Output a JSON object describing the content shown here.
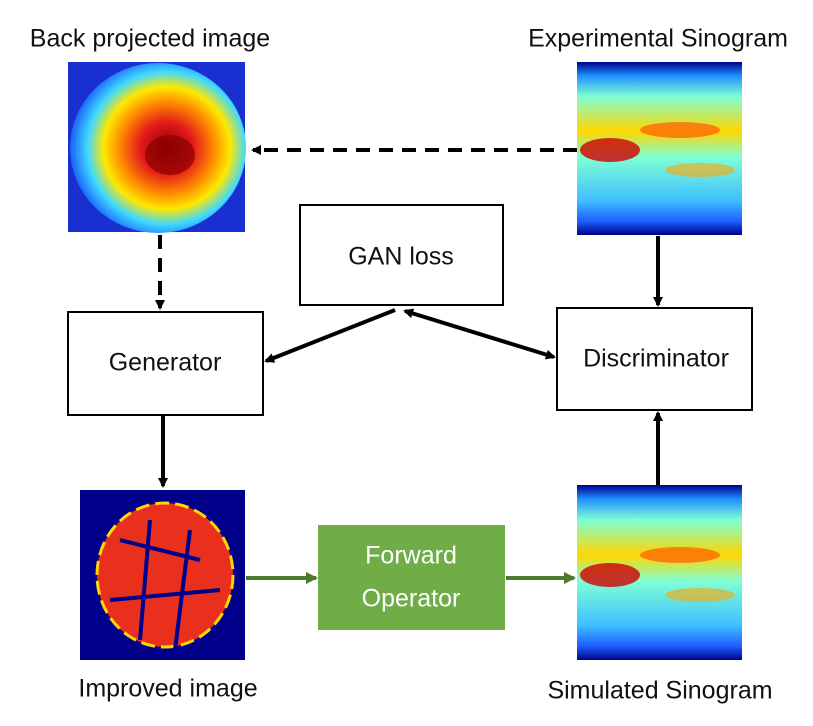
{
  "images": {
    "back_projected": "Back projected image",
    "experimental_sinogram": "Experimental Sinogram",
    "improved": "Improved image",
    "simulated_sinogram": "Simulated Sinogram"
  },
  "nodes": {
    "gan_loss": "GAN loss",
    "generator": "Generator",
    "discriminator": "Discriminator",
    "forward_operator": [
      "Forward",
      "Operator"
    ]
  }
}
